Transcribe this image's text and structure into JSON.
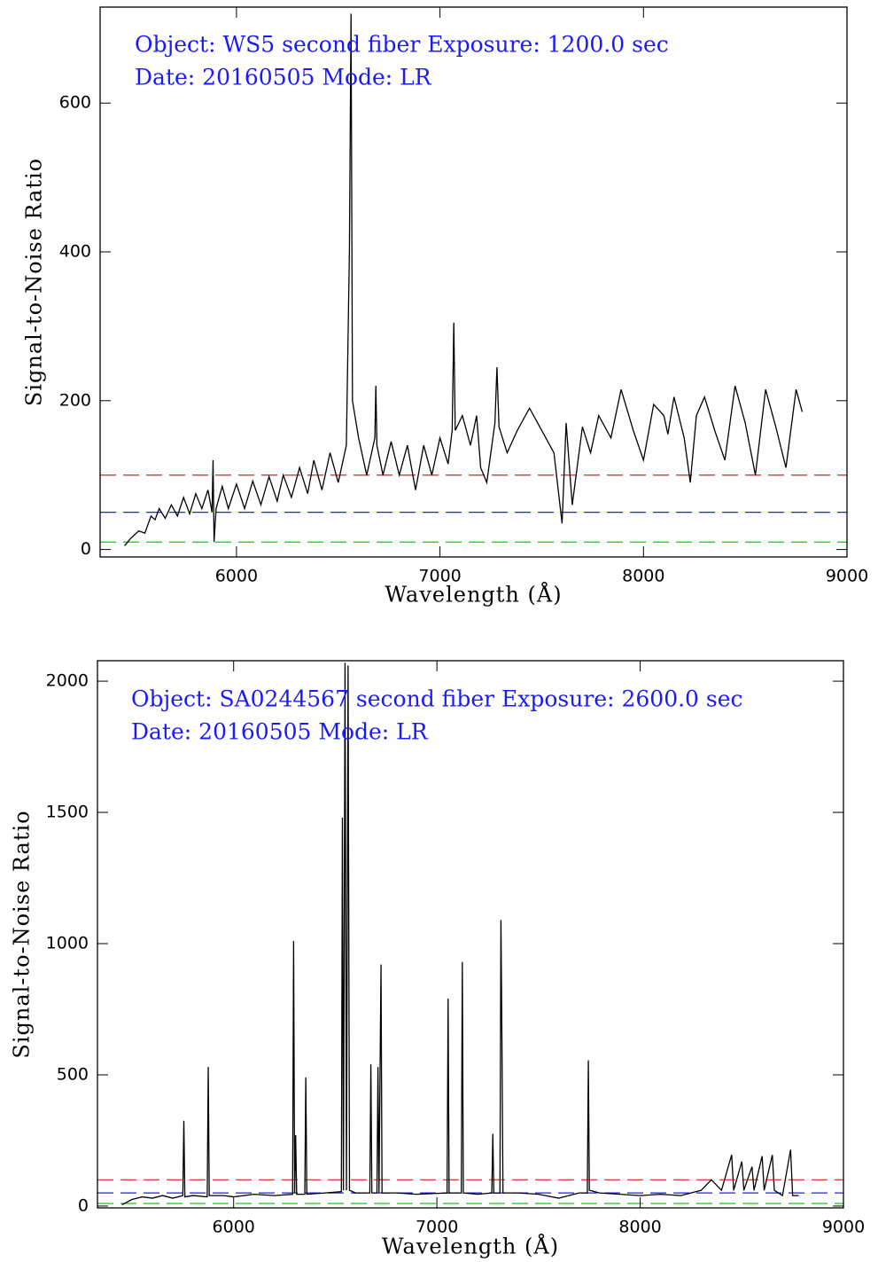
{
  "chart_data": [
    {
      "type": "line",
      "annotations": [
        "Object: WS5 second fiber Exposure: 1200.0 sec",
        "Date: 20160505 Mode: LR"
      ],
      "x_label": "Wavelength (Å)",
      "y_label": "Signal-to-Noise Ratio",
      "xlim": [
        5330,
        9000
      ],
      "ylim": [
        -10,
        729
      ],
      "xticks": [
        6000,
        7000,
        8000,
        9000
      ],
      "yticks": [
        0,
        200,
        400,
        600
      ],
      "hlines": [
        {
          "value": 100,
          "color": "#e02020"
        },
        {
          "value": 50,
          "color": "#2020e0"
        },
        {
          "value": 10,
          "color": "#20c020"
        }
      ],
      "annotation_color": "#1a1aff",
      "x": [
        5450,
        5480,
        5520,
        5550,
        5580,
        5600,
        5620,
        5650,
        5680,
        5710,
        5740,
        5770,
        5800,
        5830,
        5860,
        5880,
        5885,
        5890,
        5900,
        5930,
        5960,
        6000,
        6040,
        6080,
        6120,
        6160,
        6200,
        6230,
        6270,
        6310,
        6350,
        6380,
        6420,
        6460,
        6500,
        6540,
        6555,
        6563,
        6570,
        6600,
        6640,
        6680,
        6685,
        6690,
        6720,
        6760,
        6800,
        6840,
        6880,
        6920,
        6960,
        7000,
        7040,
        7060,
        7068,
        7075,
        7110,
        7150,
        7180,
        7200,
        7230,
        7270,
        7280,
        7290,
        7330,
        7380,
        7440,
        7500,
        7560,
        7600,
        7620,
        7650,
        7700,
        7740,
        7780,
        7840,
        7890,
        7950,
        8000,
        8050,
        8100,
        8120,
        8150,
        8200,
        8230,
        8260,
        8300,
        8350,
        8400,
        8450,
        8500,
        8550,
        8600,
        8650,
        8700,
        8750,
        8780
      ],
      "series": [
        {
          "color": "#000000",
          "values": [
            5,
            15,
            25,
            22,
            45,
            40,
            55,
            42,
            60,
            45,
            70,
            48,
            75,
            55,
            80,
            50,
            120,
            10,
            55,
            85,
            55,
            88,
            55,
            92,
            60,
            98,
            65,
            100,
            70,
            110,
            75,
            120,
            80,
            130,
            90,
            140,
            400,
            720,
            200,
            150,
            100,
            150,
            220,
            140,
            100,
            145,
            100,
            140,
            80,
            140,
            100,
            150,
            115,
            160,
            305,
            160,
            180,
            140,
            180,
            110,
            90,
            170,
            245,
            165,
            130,
            160,
            190,
            160,
            130,
            35,
            170,
            60,
            165,
            130,
            180,
            150,
            215,
            160,
            120,
            195,
            180,
            155,
            205,
            150,
            90,
            180,
            205,
            160,
            120,
            220,
            170,
            100,
            215,
            165,
            110,
            215,
            185
          ]
        }
      ]
    },
    {
      "type": "line",
      "annotations": [
        "Object: SA0244567 second fiber Exposure: 2600.0 sec",
        "Date: 20160505 Mode: LR"
      ],
      "x_label": "Wavelength (Å)",
      "y_label": "Signal-to-Noise Ratio",
      "xlim": [
        5330,
        9000
      ],
      "ylim": [
        -7,
        2078
      ],
      "xticks": [
        6000,
        7000,
        8000,
        9000
      ],
      "yticks": [
        0,
        500,
        1000,
        1500,
        2000
      ],
      "hlines": [
        {
          "value": 100,
          "color": "#e02020"
        },
        {
          "value": 50,
          "color": "#2020e0"
        },
        {
          "value": 10,
          "color": "#20c020"
        }
      ],
      "annotation_color": "#1a1aff",
      "x": [
        5450,
        5500,
        5550,
        5600,
        5650,
        5700,
        5750,
        5755,
        5760,
        5800,
        5870,
        5875,
        5880,
        5950,
        6000,
        6100,
        6200,
        6290,
        6295,
        6300,
        6305,
        6310,
        6350,
        6355,
        6360,
        6450,
        6530,
        6535,
        6540,
        6548,
        6555,
        6563,
        6570,
        6600,
        6670,
        6675,
        6680,
        6705,
        6710,
        6715,
        6725,
        6730,
        6800,
        6900,
        7050,
        7055,
        7060,
        7120,
        7125,
        7130,
        7200,
        7270,
        7275,
        7280,
        7310,
        7315,
        7320,
        7325,
        7400,
        7500,
        7600,
        7700,
        7740,
        7745,
        7750,
        7800,
        7900,
        8000,
        8100,
        8200,
        8300,
        8350,
        8400,
        8450,
        8460,
        8500,
        8510,
        8550,
        8560,
        8600,
        8610,
        8650,
        8660,
        8700,
        8740,
        8750,
        8780
      ],
      "series": [
        {
          "color": "#000000",
          "values": [
            5,
            25,
            35,
            30,
            40,
            30,
            40,
            325,
            35,
            40,
            35,
            530,
            40,
            40,
            35,
            45,
            40,
            45,
            1010,
            50,
            270,
            45,
            45,
            490,
            45,
            50,
            55,
            1480,
            60,
            2070,
            60,
            2060,
            60,
            50,
            50,
            540,
            50,
            50,
            530,
            50,
            920,
            50,
            50,
            45,
            50,
            790,
            50,
            50,
            930,
            50,
            45,
            50,
            275,
            50,
            50,
            1090,
            620,
            50,
            50,
            45,
            30,
            50,
            50,
            555,
            60,
            50,
            45,
            40,
            45,
            40,
            60,
            100,
            60,
            195,
            60,
            170,
            60,
            150,
            60,
            190,
            60,
            195,
            60,
            40,
            215,
            40,
            40
          ]
        }
      ]
    }
  ]
}
